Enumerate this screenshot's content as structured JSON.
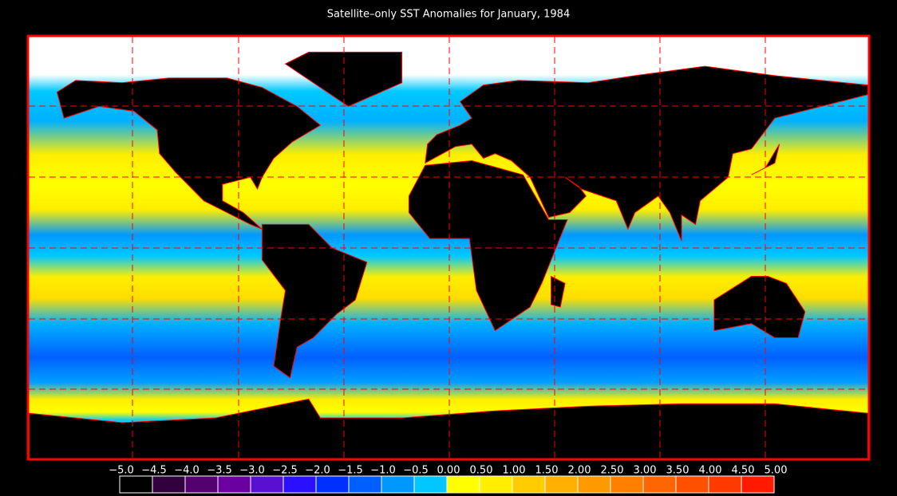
{
  "title": "Satellite–only SST Anomalies for January, 1984",
  "colorbar": {
    "ticks": [
      {
        "value": -5.0,
        "label": "−5.0"
      },
      {
        "value": -4.5,
        "label": "−4.5"
      },
      {
        "value": -4.0,
        "label": "−4.0"
      },
      {
        "value": -3.5,
        "label": "−3.5"
      },
      {
        "value": -3.0,
        "label": "−3.0"
      },
      {
        "value": -2.5,
        "label": "−2.5"
      },
      {
        "value": -2.0,
        "label": "−2.0"
      },
      {
        "value": -1.5,
        "label": "−1.5"
      },
      {
        "value": -1.0,
        "label": "−1.0"
      },
      {
        "value": -0.5,
        "label": "−0.5"
      },
      {
        "value": 0,
        "label": "0.00"
      },
      {
        "value": 0.5,
        "label": "0.50"
      },
      {
        "value": 1.0,
        "label": "1.00"
      },
      {
        "value": 1.5,
        "label": "1.50"
      },
      {
        "value": 2.0,
        "label": "2.00"
      },
      {
        "value": 2.5,
        "label": "2.50"
      },
      {
        "value": 3.0,
        "label": "3.00"
      },
      {
        "value": 3.5,
        "label": "3.50"
      },
      {
        "value": 4.0,
        "label": "4.00"
      },
      {
        "value": 4.5,
        "label": "4.50"
      },
      {
        "value": 5.0,
        "label": "5.00"
      }
    ],
    "colors": [
      "#000000",
      "#33003f",
      "#55006f",
      "#6a00a0",
      "#5a10d0",
      "#2a10ff",
      "#0030ff",
      "#0060ff",
      "#0098ff",
      "#00c8ff",
      "#ffff00",
      "#ffee00",
      "#ffcc00",
      "#ffb000",
      "#ff9900",
      "#ff8000",
      "#ff6600",
      "#ff5000",
      "#ff3a00",
      "#ff1a00"
    ]
  }
}
